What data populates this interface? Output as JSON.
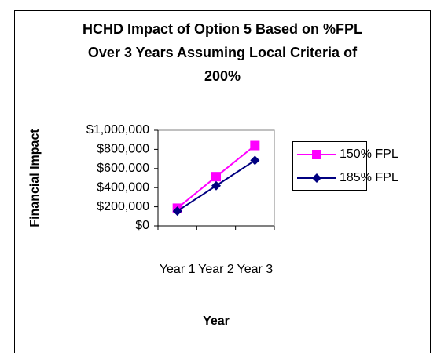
{
  "chart_data": {
    "type": "line",
    "title": "HCHD Impact of Option 5 Based on %FPL Over 3 Years Assuming Local Criteria of 200%",
    "x_label": "Year",
    "y_label": "Financial Impact",
    "categories": [
      "Year 1",
      "Year 2",
      "Year 3"
    ],
    "series": [
      {
        "name": "150% FPL",
        "color": "#ff00ff",
        "marker": "square",
        "values": [
          185000,
          515000,
          840000
        ]
      },
      {
        "name": "185% FPL",
        "color": "#000080",
        "marker": "diamond",
        "values": [
          155000,
          420000,
          685000
        ]
      }
    ],
    "ylim": [
      0,
      1000000
    ],
    "yticks": [
      {
        "value": 0,
        "label": "$0"
      },
      {
        "value": 200000,
        "label": "$200,000"
      },
      {
        "value": 400000,
        "label": "$400,000"
      },
      {
        "value": 600000,
        "label": "$600,000"
      },
      {
        "value": 800000,
        "label": "$800,000"
      },
      {
        "value": 1000000,
        "label": "$1,000,000"
      }
    ],
    "legend": "right"
  }
}
